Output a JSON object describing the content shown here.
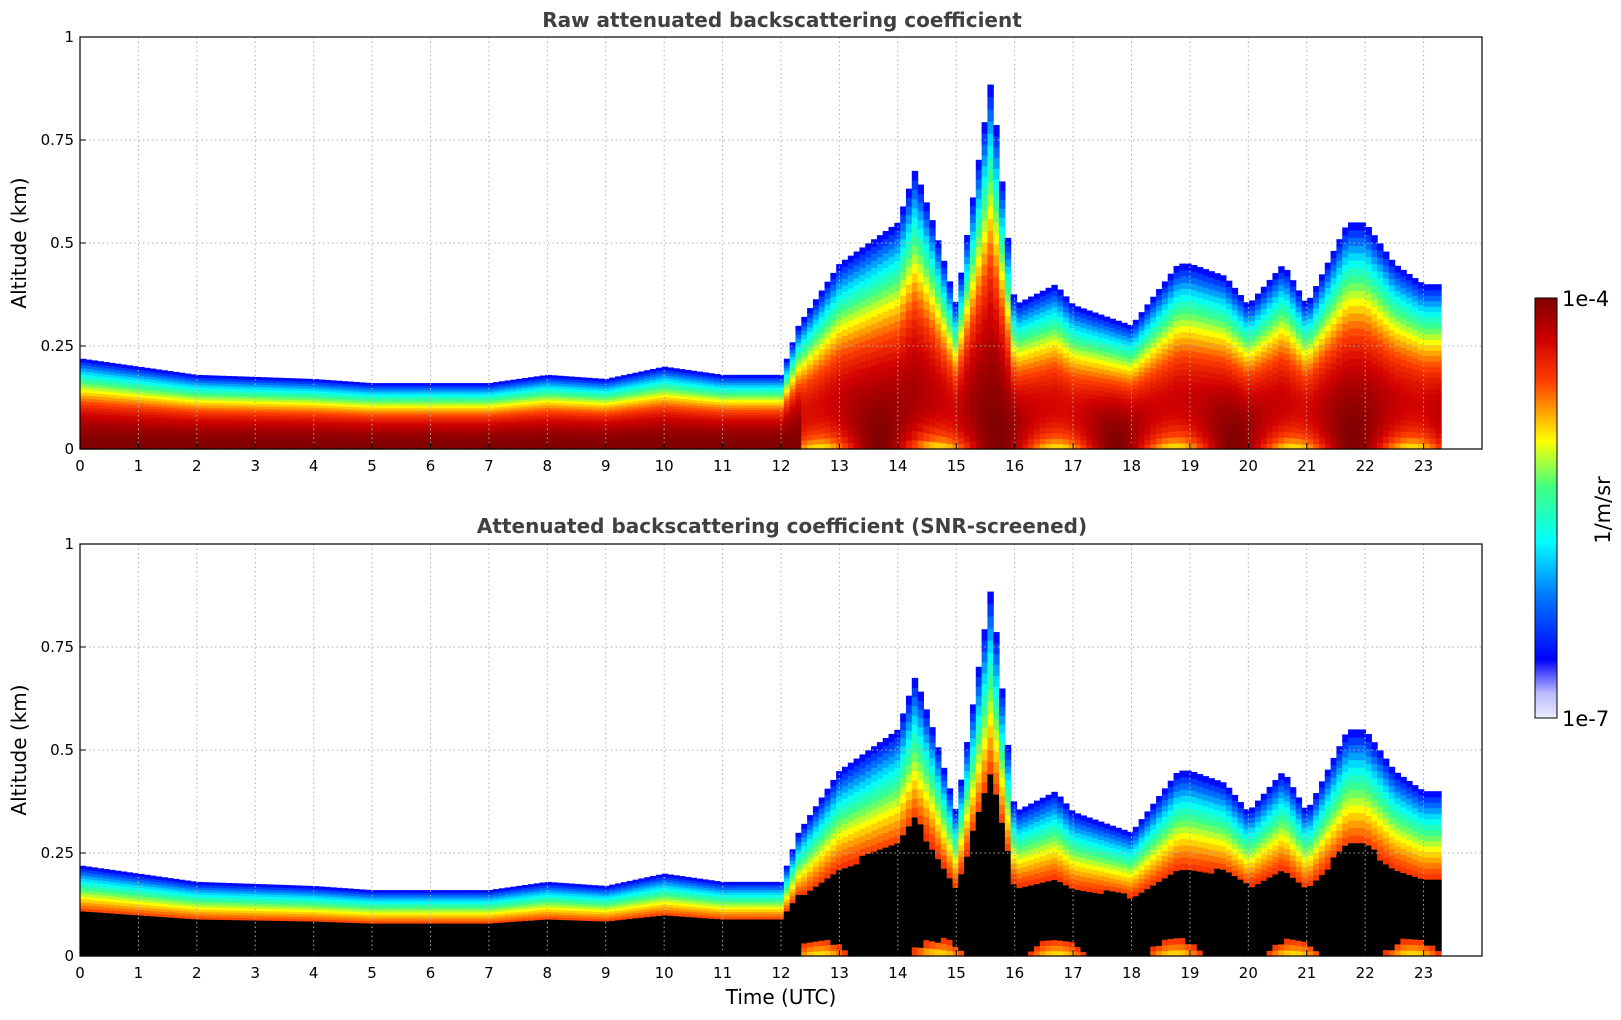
{
  "figure": {
    "colorbar": {
      "label": "1/m/sr",
      "max_label": "1e-4",
      "min_label": "1e-7",
      "colormap": "jet-like (white/lavender → blue → cyan → green → yellow → red → dark red)",
      "color_low": "#ececff",
      "color_high": "#800000",
      "saturated_color_screened": "#000000"
    }
  },
  "chart_data": [
    {
      "type": "heatmap",
      "title": "Raw attenuated backscattering coefficient",
      "xlabel": "",
      "ylabel": "Altitude (km)",
      "xlim": [
        0,
        24
      ],
      "ylim": [
        0,
        1
      ],
      "x_ticks": [
        "0",
        "1",
        "2",
        "3",
        "4",
        "5",
        "6",
        "7",
        "8",
        "9",
        "10",
        "11",
        "12",
        "13",
        "14",
        "15",
        "16",
        "17",
        "18",
        "19",
        "20",
        "21",
        "22",
        "23"
      ],
      "y_ticks": [
        "0",
        "0.25",
        "0.5",
        "0.75",
        "1"
      ],
      "grid": true,
      "data_end_hour": 23.3,
      "boundary_layer_top_km": [
        [
          0,
          0.22
        ],
        [
          1,
          0.2
        ],
        [
          2,
          0.18
        ],
        [
          4,
          0.17
        ],
        [
          5,
          0.16
        ],
        [
          6,
          0.16
        ],
        [
          7,
          0.16
        ],
        [
          8,
          0.18
        ],
        [
          9,
          0.17
        ],
        [
          10,
          0.2
        ],
        [
          11,
          0.18
        ],
        [
          12,
          0.18
        ],
        [
          12.3,
          0.3
        ],
        [
          13,
          0.45
        ],
        [
          14,
          0.55
        ],
        [
          14.3,
          0.68
        ],
        [
          14.6,
          0.55
        ],
        [
          15,
          0.35
        ],
        [
          15.6,
          0.9
        ],
        [
          16,
          0.35
        ],
        [
          16.7,
          0.4
        ],
        [
          17,
          0.35
        ],
        [
          18,
          0.3
        ],
        [
          18.8,
          0.45
        ],
        [
          19,
          0.45
        ],
        [
          19.6,
          0.42
        ],
        [
          20,
          0.35
        ],
        [
          20.6,
          0.45
        ],
        [
          21,
          0.35
        ],
        [
          21.7,
          0.55
        ],
        [
          22,
          0.55
        ],
        [
          22.5,
          0.45
        ],
        [
          23,
          0.4
        ],
        [
          23.3,
          0.4
        ]
      ]
    },
    {
      "type": "heatmap",
      "title": "Attenuated backscattering coefficient (SNR-screened)",
      "xlabel": "Time (UTC)",
      "ylabel": "Altitude (km)",
      "xlim": [
        0,
        24
      ],
      "ylim": [
        0,
        1
      ],
      "x_ticks": [
        "0",
        "1",
        "2",
        "3",
        "4",
        "5",
        "6",
        "7",
        "8",
        "9",
        "10",
        "11",
        "12",
        "13",
        "14",
        "15",
        "16",
        "17",
        "18",
        "19",
        "20",
        "21",
        "22",
        "23"
      ],
      "y_ticks": [
        "0",
        "0.25",
        "0.5",
        "0.75",
        "1"
      ],
      "grid": true,
      "data_end_hour": 23.3
    }
  ]
}
